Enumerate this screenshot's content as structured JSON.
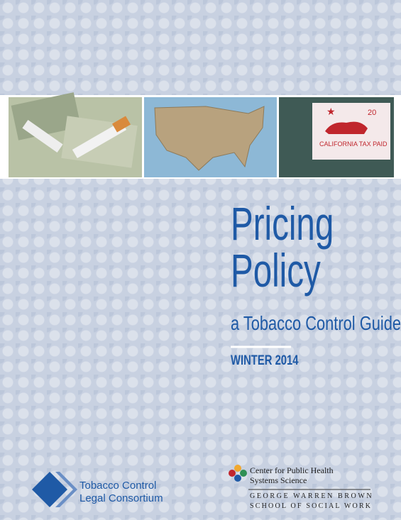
{
  "cover": {
    "title": [
      "Pricing",
      "Policy"
    ],
    "subtitle": "a Tobacco Control Guide",
    "edition": "WINTER 2014",
    "photo_sign": {
      "badge": "20",
      "text": "CALIFORNIA TAX PAID"
    },
    "left_logo": [
      "Tobacco Control",
      "Legal Consortium"
    ],
    "right_logo": {
      "center": [
        "Center for Public Health",
        "Systems Science"
      ],
      "school": [
        "GEORGE WARREN BROWN",
        "SCHOOL OF SOCIAL WORK"
      ]
    }
  }
}
